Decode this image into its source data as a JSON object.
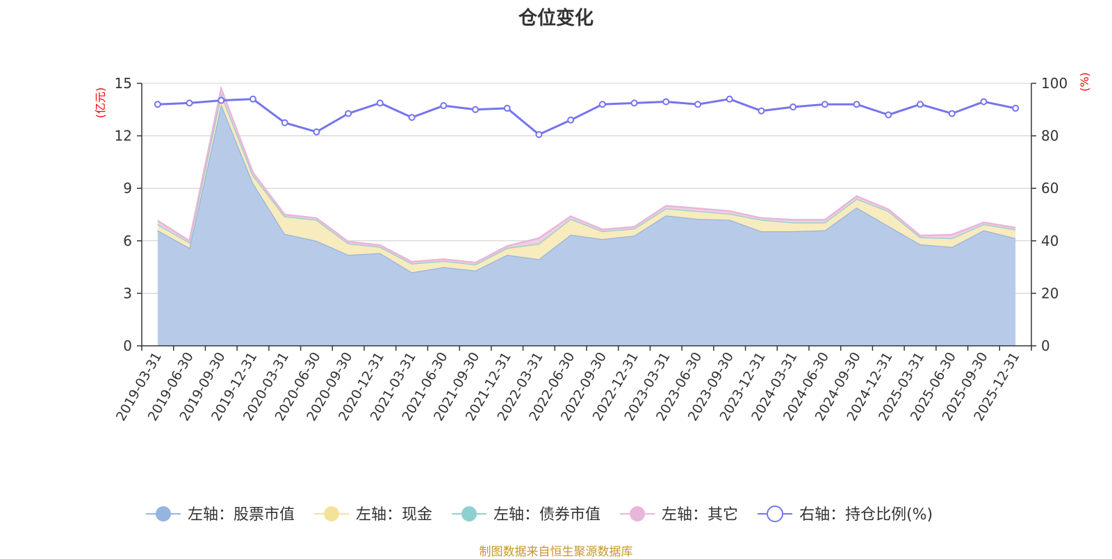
{
  "title": "仓位变化",
  "source": "制图数据来自恒生聚源数据库",
  "chart_data": {
    "type": "area",
    "categories": [
      "2019-03-31",
      "2019-06-30",
      "2019-09-30",
      "2019-12-31",
      "2020-03-31",
      "2020-06-30",
      "2020-09-30",
      "2020-12-31",
      "2021-03-31",
      "2021-06-30",
      "2021-09-30",
      "2021-12-31",
      "2022-03-31",
      "2022-06-30",
      "2022-09-30",
      "2022-12-31",
      "2023-03-31",
      "2023-06-30",
      "2023-09-30",
      "2023-12-31",
      "2024-03-31",
      "2024-06-30",
      "2024-09-30",
      "2024-12-31",
      "2025-03-31",
      "2025-06-30",
      "2025-09-30",
      "2025-12-31"
    ],
    "left_axis": {
      "label": "(亿元)",
      "min": 0,
      "max": 15,
      "ticks": [
        "0",
        "3",
        "6",
        "9",
        "12",
        "15"
      ]
    },
    "right_axis": {
      "label": "(%)",
      "min": 0,
      "max": 100,
      "ticks": [
        "0",
        "20",
        "40",
        "60",
        "80",
        "100"
      ]
    },
    "grid": true,
    "legend_position": "bottom",
    "series": [
      {
        "name": "左轴：股票市值",
        "axis": "left",
        "stack": true,
        "color": "#96b4e0",
        "fill": "#b7cbe9",
        "values": [
          6.6,
          5.6,
          13.8,
          9.3,
          6.4,
          6.0,
          5.2,
          5.3,
          4.2,
          4.5,
          4.3,
          5.2,
          4.95,
          6.35,
          6.1,
          6.3,
          7.45,
          7.25,
          7.2,
          6.55,
          6.55,
          6.6,
          7.9,
          6.85,
          5.8,
          5.65,
          6.6,
          6.15
        ]
      },
      {
        "name": "左轴：现金",
        "axis": "left",
        "stack": true,
        "color": "#f5e29a",
        "fill": "#f8ebbd",
        "values": [
          0.35,
          0.3,
          0.6,
          0.45,
          1.0,
          1.2,
          0.65,
          0.35,
          0.5,
          0.35,
          0.35,
          0.35,
          0.85,
          0.9,
          0.45,
          0.4,
          0.4,
          0.45,
          0.35,
          0.65,
          0.5,
          0.45,
          0.5,
          0.85,
          0.4,
          0.5,
          0.35,
          0.5
        ]
      },
      {
        "name": "左轴：债券市值",
        "axis": "left",
        "stack": true,
        "color": "#8ed0cf",
        "fill": "#b4e0df",
        "values": [
          0,
          0,
          0,
          0,
          0,
          0,
          0,
          0,
          0,
          0,
          0,
          0.05,
          0.05,
          0,
          0,
          0,
          0,
          0,
          0,
          0,
          0,
          0,
          0,
          0,
          0,
          0,
          0,
          0
        ]
      },
      {
        "name": "左轴：其它",
        "axis": "left",
        "stack": true,
        "color": "#e8b6d8",
        "fill": "#f0cfe5",
        "values": [
          0.2,
          0.1,
          0.3,
          0.15,
          0.1,
          0.1,
          0.1,
          0.1,
          0.1,
          0.1,
          0.1,
          0.1,
          0.3,
          0.15,
          0.1,
          0.1,
          0.15,
          0.15,
          0.15,
          0.1,
          0.15,
          0.15,
          0.15,
          0.1,
          0.1,
          0.2,
          0.1,
          0.1
        ]
      },
      {
        "name": "右轴：持仓比例(%)",
        "axis": "right",
        "type": "line",
        "color": "#7474ee",
        "values": [
          92,
          92.5,
          93.5,
          94,
          85,
          81.5,
          88.5,
          92.5,
          87,
          91.5,
          90,
          90.5,
          80.5,
          86,
          92,
          92.5,
          93,
          92,
          94,
          89.5,
          91,
          92,
          92,
          88,
          92,
          88.5,
          93,
          90.5
        ]
      }
    ]
  }
}
